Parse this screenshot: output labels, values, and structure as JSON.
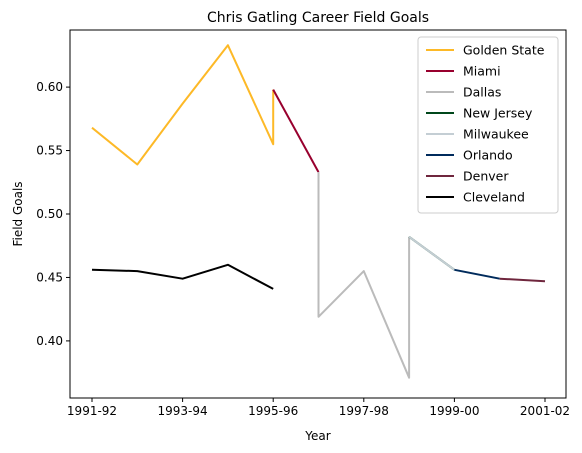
{
  "chart_data": {
    "type": "line",
    "title": "Chris Gatling Career Field Goals",
    "xlabel": "Year",
    "ylabel": "Field Goals",
    "x_categories": [
      "1991-92",
      "1992-93",
      "1993-94",
      "1994-95",
      "1995-96",
      "1996-97",
      "1997-98",
      "1998-99",
      "1999-00",
      "2000-01",
      "2001-02"
    ],
    "x_tick_labels": [
      "1991-92",
      "1993-94",
      "1995-96",
      "1997-98",
      "1999-00",
      "2001-02"
    ],
    "ylim": [
      0.355,
      0.645
    ],
    "y_ticks": [
      0.4,
      0.45,
      0.5,
      0.55,
      0.6
    ],
    "y_tick_labels": [
      "0.40",
      "0.45",
      "0.50",
      "0.55",
      "0.60"
    ],
    "legend_position": "top-right",
    "grid": false,
    "series": [
      {
        "name": "Golden State",
        "color": "#FDB927",
        "points": [
          [
            "1991-92",
            0.568
          ],
          [
            "1992-93",
            0.539
          ],
          [
            "1993-94",
            0.587
          ],
          [
            "1994-95",
            0.633
          ],
          [
            "1995-96",
            0.555
          ],
          [
            "1995-96",
            0.598
          ]
        ]
      },
      {
        "name": "Miami",
        "color": "#98002E",
        "points": [
          [
            "1995-96",
            0.598
          ],
          [
            "1996-97",
            0.533
          ]
        ]
      },
      {
        "name": "Dallas",
        "color": "#BBBBBB",
        "points": [
          [
            "1996-97",
            0.533
          ],
          [
            "1996-97",
            0.419
          ],
          [
            "1997-98",
            0.455
          ],
          [
            "1998-99",
            0.371
          ],
          [
            "1998-99",
            0.482
          ]
        ]
      },
      {
        "name": "New Jersey",
        "color": "#00471B",
        "points": [
          [
            "1998-99",
            0.482
          ],
          [
            "1999-00",
            0.456
          ]
        ]
      },
      {
        "name": "Milwaukee",
        "color": "#C4CED4",
        "points": [
          [
            "1998-99",
            0.482
          ],
          [
            "1999-00",
            0.456
          ]
        ]
      },
      {
        "name": "Orlando",
        "color": "#002B5C",
        "points": [
          [
            "1999-00",
            0.456
          ],
          [
            "2000-01",
            0.449
          ]
        ]
      },
      {
        "name": "Denver",
        "color": "#6F263D",
        "points": [
          [
            "2000-01",
            0.449
          ],
          [
            "2001-02",
            0.447
          ]
        ]
      },
      {
        "name": "Cleveland",
        "color": "#000000",
        "points": [
          [
            "1991-92",
            0.456
          ],
          [
            "1992-93",
            0.455
          ],
          [
            "1993-94",
            0.449
          ],
          [
            "1994-95",
            0.46
          ],
          [
            "1995-96",
            0.441
          ]
        ]
      }
    ]
  }
}
